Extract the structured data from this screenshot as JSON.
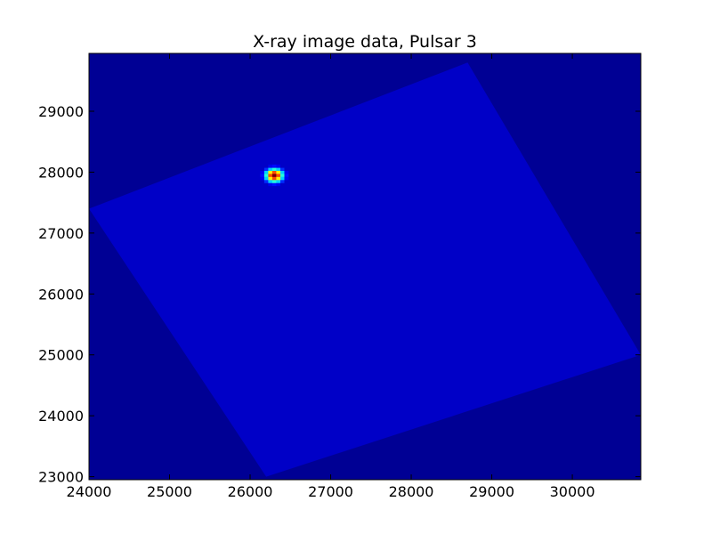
{
  "chart_data": {
    "type": "heatmap",
    "title": "X-ray image data, Pulsar 3",
    "xlabel": "",
    "ylabel": "",
    "xlim": [
      24000,
      30850
    ],
    "ylim": [
      22950,
      29950
    ],
    "xticks": [
      24000,
      25000,
      26000,
      27000,
      28000,
      29000,
      30000
    ],
    "yticks": [
      23000,
      24000,
      25000,
      26000,
      27000,
      28000,
      29000
    ],
    "colormap": "jet",
    "grid": false,
    "background_level": 0.02,
    "field_of_view": {
      "shape": "rotated-square",
      "corners": [
        [
          24000,
          27400
        ],
        [
          28700,
          29800
        ],
        [
          30850,
          25000
        ],
        [
          26200,
          23000
        ]
      ],
      "level": 0.07
    },
    "source": {
      "name": "Pulsar 3",
      "x": 26300,
      "y": 27950,
      "peak_level": 1.0,
      "sigma": 75
    }
  }
}
